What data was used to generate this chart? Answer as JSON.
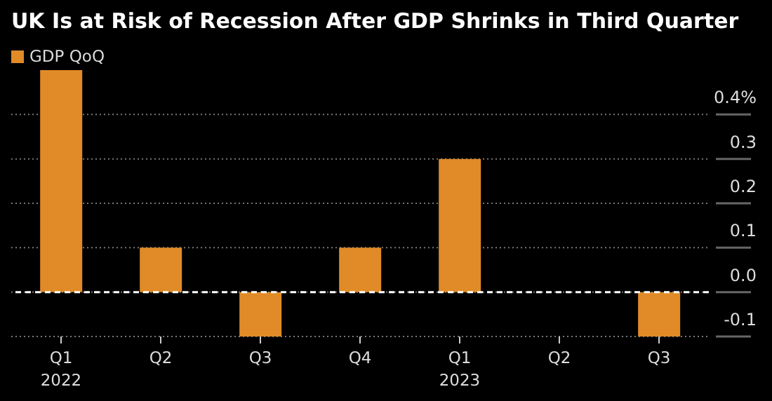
{
  "chart_data": {
    "type": "bar",
    "title": "UK Is at Risk of Recession After GDP Shrinks in Third Quarter",
    "categories": [
      "Q1 2022",
      "Q2",
      "Q3",
      "Q4",
      "Q1 2023",
      "Q2",
      "Q3"
    ],
    "series": [
      {
        "name": "GDP QoQ",
        "color": "#e08b28",
        "values": [
          0.5,
          0.1,
          -0.1,
          0.1,
          0.3,
          0.0,
          -0.1
        ]
      }
    ],
    "ylim": [
      -0.1,
      0.5
    ],
    "yticks": [
      -0.1,
      {
        "value": 0,
        "label": "0.0"
      },
      0.1,
      0.2,
      0.3,
      {
        "value": 0.4,
        "label": "0.4%"
      }
    ],
    "ref_lines": [
      {
        "axis": "y",
        "value": 0,
        "color": "#ffffff",
        "line_style": "dashed"
      }
    ],
    "grid": "y",
    "legend": "top left"
  }
}
